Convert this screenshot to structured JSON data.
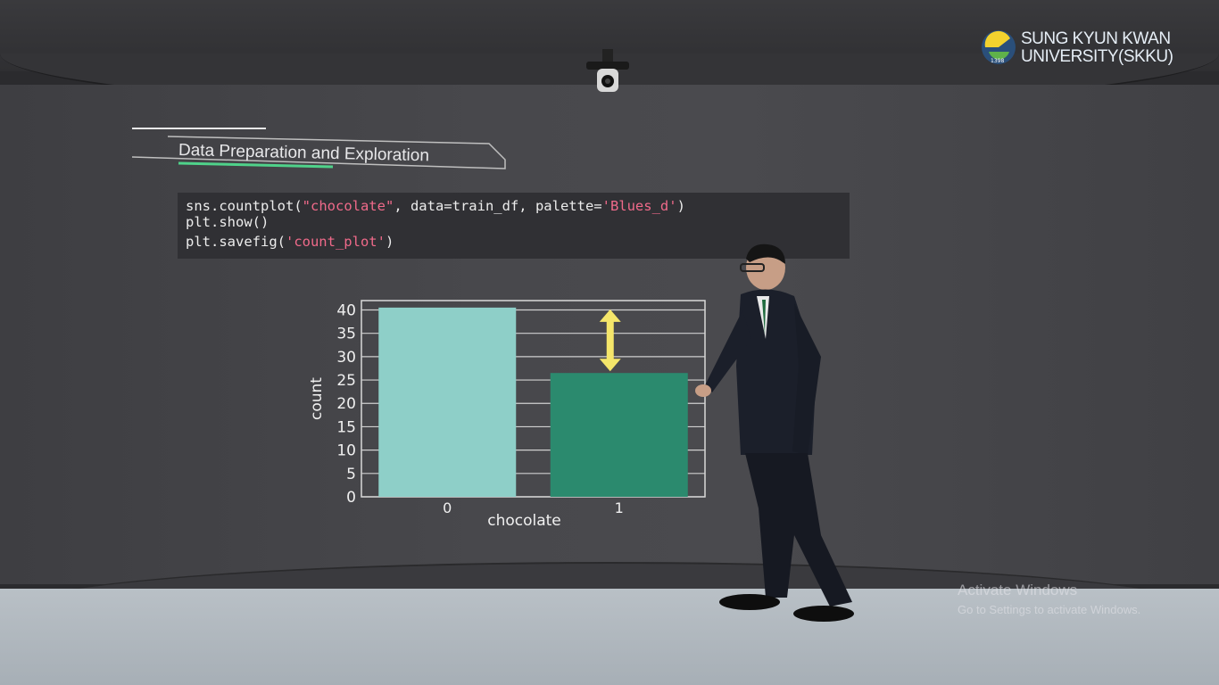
{
  "logo": {
    "line1": "SUNG KYUN KWAN",
    "line2": "UNIVERSITY(SKKU)",
    "seal_text": "1398"
  },
  "slide": {
    "title": "Data Preparation and Exploration",
    "code": {
      "line1_a": "sns.countplot(",
      "line1_s1": "\"chocolate\"",
      "line1_b": ", data=train_df, palette=",
      "line1_s2": "'Blues_d'",
      "line1_c": ")",
      "line2": "plt.show()",
      "line3_a": "plt.savefig(",
      "line3_s": "'count_plot'",
      "line3_c": ")"
    }
  },
  "chart_data": {
    "type": "bar",
    "categories": [
      "0",
      "1"
    ],
    "values": [
      40.5,
      26.5
    ],
    "xlabel": "chocolate",
    "ylabel": "count",
    "ylim": [
      0,
      42
    ],
    "yticks": [
      0,
      5,
      10,
      15,
      20,
      25,
      30,
      35,
      40
    ],
    "bar_colors": [
      "#8ecfc8",
      "#2b8a6e"
    ],
    "grid": "horizontal",
    "annotation": "yellow double-headed arrow between bar heights"
  },
  "watermark": {
    "line1": "Activate Windows",
    "line2": "Go to Settings to activate Windows."
  },
  "colors": {
    "arrow": "#f5e66a",
    "wall": "#45454a",
    "floor": "#b3bac1"
  }
}
